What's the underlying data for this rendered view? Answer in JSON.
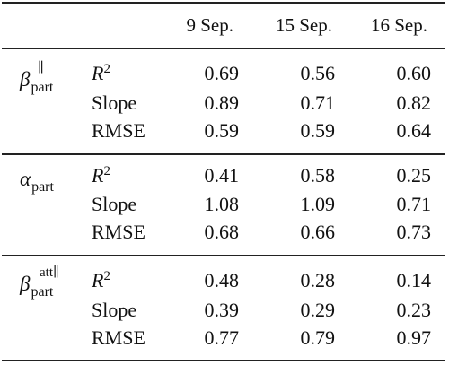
{
  "table": {
    "columns": [
      "9 Sep.",
      "15 Sep.",
      "16 Sep."
    ],
    "groups": [
      {
        "symbol": {
          "base": "β",
          "sub": "part",
          "sup": "∥"
        },
        "rows": [
          {
            "metric_base": "R",
            "metric_sup": "2",
            "values": [
              "0.69",
              "0.56",
              "0.60"
            ]
          },
          {
            "metric_base": "Slope",
            "metric_sup": "",
            "values": [
              "0.89",
              "0.71",
              "0.82"
            ]
          },
          {
            "metric_base": "RMSE",
            "metric_sup": "",
            "values": [
              "0.59",
              "0.59",
              "0.64"
            ]
          }
        ]
      },
      {
        "symbol": {
          "base": "α",
          "sub": "part",
          "sup": ""
        },
        "rows": [
          {
            "metric_base": "R",
            "metric_sup": "2",
            "values": [
              "0.41",
              "0.58",
              "0.25"
            ]
          },
          {
            "metric_base": "Slope",
            "metric_sup": "",
            "values": [
              "1.08",
              "1.09",
              "0.71"
            ]
          },
          {
            "metric_base": "RMSE",
            "metric_sup": "",
            "values": [
              "0.68",
              "0.66",
              "0.73"
            ]
          }
        ]
      },
      {
        "symbol": {
          "base": "β",
          "sub": "part",
          "sup": "att∥"
        },
        "rows": [
          {
            "metric_base": "R",
            "metric_sup": "2",
            "values": [
              "0.48",
              "0.28",
              "0.14"
            ]
          },
          {
            "metric_base": "Slope",
            "metric_sup": "",
            "values": [
              "0.39",
              "0.29",
              "0.23"
            ]
          },
          {
            "metric_base": "RMSE",
            "metric_sup": "",
            "values": [
              "0.77",
              "0.79",
              "0.97"
            ]
          }
        ]
      }
    ]
  }
}
